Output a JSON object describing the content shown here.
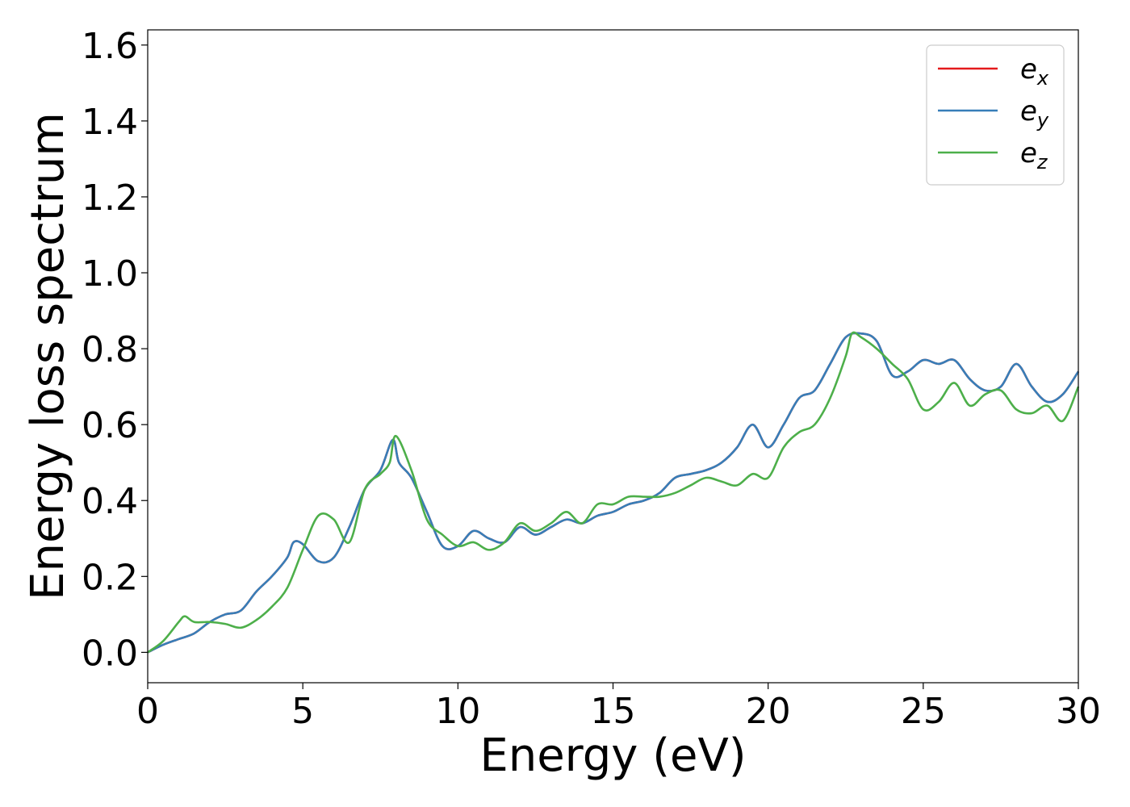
{
  "chart_data": {
    "type": "line",
    "xlabel": "Energy (eV)",
    "ylabel": "Energy loss spectrum",
    "xlim": [
      0,
      30
    ],
    "ylim": [
      -0.08,
      1.64
    ],
    "xticks": [
      0,
      5,
      10,
      15,
      20,
      25,
      30
    ],
    "xtick_labels": [
      "0",
      "5",
      "10",
      "15",
      "20",
      "25",
      "30"
    ],
    "yticks": [
      0.0,
      0.2,
      0.4,
      0.6,
      0.8,
      1.0,
      1.2,
      1.4,
      1.6
    ],
    "ytick_labels": [
      "0.0",
      "0.2",
      "0.4",
      "0.6",
      "0.8",
      "1.0",
      "1.2",
      "1.4",
      "1.6"
    ],
    "grid": false,
    "legend_position": "top-right",
    "series": [
      {
        "name": "e_x",
        "legend_base": "e",
        "legend_sub": "x",
        "color": "#e41a1c",
        "x": [
          0,
          0.5,
          1.0,
          1.5,
          2.0,
          2.5,
          3.0,
          3.5,
          4.0,
          4.5,
          4.7,
          5.0,
          5.5,
          6.0,
          6.5,
          7.0,
          7.5,
          7.9,
          8.1,
          8.5,
          9.0,
          9.5,
          10.0,
          10.5,
          11.0,
          11.5,
          12.0,
          12.5,
          13.0,
          13.5,
          14.0,
          14.5,
          15.0,
          15.5,
          16.0,
          16.5,
          17.0,
          17.5,
          18.0,
          18.5,
          19.0,
          19.5,
          20.0,
          20.5,
          21.0,
          21.5,
          22.0,
          22.5,
          23.0,
          23.5,
          24.0,
          24.5,
          25.0,
          25.5,
          26.0,
          26.5,
          27.0,
          27.5,
          28.0,
          28.5,
          29.0,
          29.5,
          30.0
        ],
        "y": [
          0.0,
          0.02,
          0.035,
          0.05,
          0.08,
          0.1,
          0.11,
          0.16,
          0.2,
          0.25,
          0.29,
          0.285,
          0.24,
          0.25,
          0.33,
          0.43,
          0.48,
          0.56,
          0.5,
          0.46,
          0.37,
          0.28,
          0.28,
          0.32,
          0.3,
          0.29,
          0.33,
          0.31,
          0.33,
          0.35,
          0.34,
          0.36,
          0.37,
          0.39,
          0.4,
          0.42,
          0.46,
          0.47,
          0.48,
          0.5,
          0.54,
          0.6,
          0.54,
          0.6,
          0.67,
          0.69,
          0.76,
          0.83,
          0.84,
          0.82,
          0.73,
          0.74,
          0.77,
          0.76,
          0.77,
          0.72,
          0.69,
          0.7,
          0.76,
          0.7,
          0.66,
          0.68,
          0.74
        ]
      },
      {
        "name": "e_y",
        "legend_base": "e",
        "legend_sub": "y",
        "color": "#377eb8",
        "x": [
          0,
          0.5,
          1.0,
          1.5,
          2.0,
          2.5,
          3.0,
          3.5,
          4.0,
          4.5,
          4.7,
          5.0,
          5.5,
          6.0,
          6.5,
          7.0,
          7.5,
          7.9,
          8.1,
          8.5,
          9.0,
          9.5,
          10.0,
          10.5,
          11.0,
          11.5,
          12.0,
          12.5,
          13.0,
          13.5,
          14.0,
          14.5,
          15.0,
          15.5,
          16.0,
          16.5,
          17.0,
          17.5,
          18.0,
          18.5,
          19.0,
          19.5,
          20.0,
          20.5,
          21.0,
          21.5,
          22.0,
          22.5,
          23.0,
          23.5,
          24.0,
          24.5,
          25.0,
          25.5,
          26.0,
          26.5,
          27.0,
          27.5,
          28.0,
          28.5,
          29.0,
          29.5,
          30.0
        ],
        "y": [
          0.0,
          0.02,
          0.035,
          0.05,
          0.08,
          0.1,
          0.11,
          0.16,
          0.2,
          0.25,
          0.29,
          0.285,
          0.24,
          0.25,
          0.33,
          0.43,
          0.48,
          0.56,
          0.5,
          0.46,
          0.37,
          0.28,
          0.28,
          0.32,
          0.3,
          0.29,
          0.33,
          0.31,
          0.33,
          0.35,
          0.34,
          0.36,
          0.37,
          0.39,
          0.4,
          0.42,
          0.46,
          0.47,
          0.48,
          0.5,
          0.54,
          0.6,
          0.54,
          0.6,
          0.67,
          0.69,
          0.76,
          0.83,
          0.84,
          0.82,
          0.73,
          0.74,
          0.77,
          0.76,
          0.77,
          0.72,
          0.69,
          0.7,
          0.76,
          0.7,
          0.66,
          0.68,
          0.74
        ]
      },
      {
        "name": "e_z",
        "legend_base": "e",
        "legend_sub": "z",
        "color": "#4daf4a",
        "x": [
          0,
          0.5,
          1.0,
          1.2,
          1.5,
          2.0,
          2.5,
          3.0,
          3.5,
          4.0,
          4.5,
          5.0,
          5.5,
          6.0,
          6.5,
          7.0,
          7.5,
          7.8,
          8.0,
          8.5,
          9.0,
          9.5,
          10.0,
          10.5,
          11.0,
          11.5,
          12.0,
          12.5,
          13.0,
          13.5,
          14.0,
          14.5,
          15.0,
          15.5,
          16.0,
          16.5,
          17.0,
          17.5,
          18.0,
          18.5,
          19.0,
          19.5,
          20.0,
          20.5,
          21.0,
          21.5,
          22.0,
          22.5,
          22.7,
          23.0,
          23.5,
          24.0,
          24.5,
          25.0,
          25.5,
          26.0,
          26.5,
          27.0,
          27.5,
          28.0,
          28.5,
          29.0,
          29.5,
          30.0
        ],
        "y": [
          0.0,
          0.03,
          0.08,
          0.095,
          0.08,
          0.08,
          0.075,
          0.065,
          0.085,
          0.12,
          0.17,
          0.27,
          0.36,
          0.35,
          0.29,
          0.43,
          0.47,
          0.5,
          0.57,
          0.48,
          0.35,
          0.31,
          0.28,
          0.29,
          0.27,
          0.29,
          0.34,
          0.32,
          0.34,
          0.37,
          0.34,
          0.39,
          0.39,
          0.41,
          0.41,
          0.41,
          0.42,
          0.44,
          0.46,
          0.45,
          0.44,
          0.47,
          0.46,
          0.54,
          0.58,
          0.6,
          0.67,
          0.78,
          0.84,
          0.83,
          0.8,
          0.76,
          0.72,
          0.64,
          0.66,
          0.71,
          0.65,
          0.68,
          0.69,
          0.64,
          0.63,
          0.65,
          0.61,
          0.7
        ]
      }
    ]
  }
}
